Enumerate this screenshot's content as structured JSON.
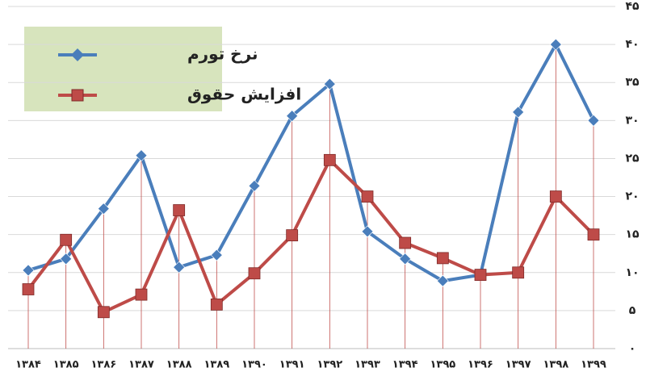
{
  "chart_data": {
    "type": "line",
    "categories": [
      "۱۳۸۴",
      "۱۳۸۵",
      "۱۳۸۶",
      "۱۳۸۷",
      "۱۳۸۸",
      "۱۳۸۹",
      "۱۳۹۰",
      "۱۳۹۱",
      "۱۳۹۲",
      "۱۳۹۳",
      "۱۳۹۴",
      "۱۳۹۵",
      "۱۳۹۶",
      "۱۳۹۷",
      "۱۳۹۸",
      "۱۳۹۹"
    ],
    "series": [
      {
        "name": "نرخ تورم",
        "color": "#4a7ebb",
        "marker": "diamond",
        "values": [
          10.3,
          11.8,
          18.4,
          25.4,
          10.7,
          12.3,
          21.4,
          30.6,
          34.8,
          15.4,
          11.8,
          8.9,
          9.7,
          31.1,
          40,
          30
        ]
      },
      {
        "name": "افزایش حقوق",
        "color": "#be4b48",
        "marker": "square",
        "values": [
          7.8,
          14.3,
          4.8,
          7.1,
          18.2,
          5.8,
          9.9,
          14.9,
          24.8,
          20,
          13.9,
          11.9,
          9.7,
          10,
          20,
          15
        ]
      }
    ],
    "ylim": [
      0,
      45
    ],
    "yticks": [
      {
        "value": 0,
        "label": "۰"
      },
      {
        "value": 5,
        "label": "۵"
      },
      {
        "value": 10,
        "label": "۱۰"
      },
      {
        "value": 15,
        "label": "۱۵"
      },
      {
        "value": 20,
        "label": "۲۰"
      },
      {
        "value": 25,
        "label": "۲۵"
      },
      {
        "value": 30,
        "label": "۳۰"
      },
      {
        "value": 35,
        "label": "۳۵"
      },
      {
        "value": 40,
        "label": "۴۰"
      },
      {
        "value": 45,
        "label": "۴۵"
      }
    ],
    "grid": true
  }
}
